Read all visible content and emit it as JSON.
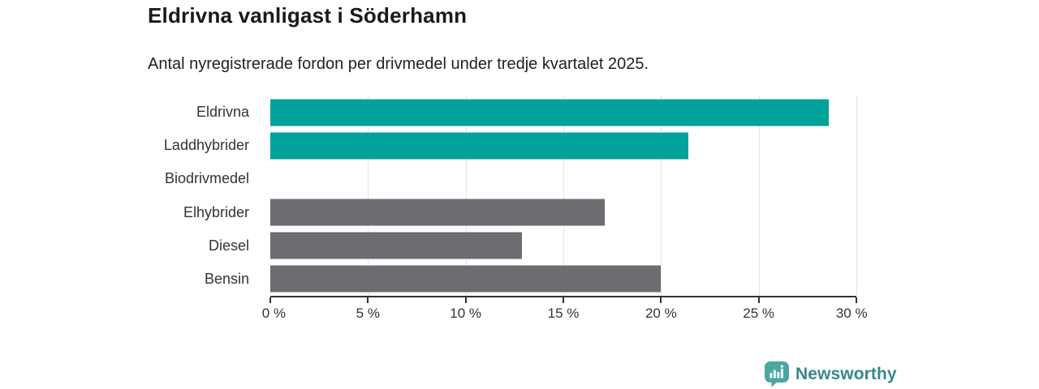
{
  "chart": {
    "title": "Eldrivna vanligast i Söderhamn",
    "subtitle": "Antal nyregistrerade fordon per drivmedel under tredje kvartalet 2025."
  },
  "chart_data": {
    "type": "bar",
    "orientation": "horizontal",
    "title": "Eldrivna vanligast i Söderhamn",
    "subtitle": "Antal nyregistrerade fordon per drivmedel under tredje kvartalet 2025.",
    "categories": [
      "Eldrivna",
      "Laddhybrider",
      "Biodrivmedel",
      "Elhybrider",
      "Diesel",
      "Bensin"
    ],
    "values": [
      28.6,
      21.4,
      0,
      17.1,
      12.9,
      20.0
    ],
    "unit": "%",
    "xlabel": "",
    "ylabel": "",
    "xlim": [
      0,
      30
    ],
    "x_ticks": [
      0,
      5,
      10,
      15,
      20,
      25,
      30
    ],
    "x_tick_labels": [
      "0 %",
      "5 %",
      "10 %",
      "15 %",
      "20 %",
      "25 %",
      "30 %"
    ],
    "grid": true,
    "legend": false,
    "colors": {
      "highlight": "#00a29b",
      "default": "#6c6c71",
      "gridline": "#e4e4e4",
      "axis": "#333333"
    },
    "bar_color_roles": [
      "highlight",
      "highlight",
      "default",
      "default",
      "default",
      "default"
    ]
  },
  "footer": {
    "brand_name": "Newsworthy",
    "brand_color": "#35898c",
    "brand_icon": "newsworthy-bar-chart-badge-icon",
    "brand_icon_color": "#4aa8a0"
  }
}
